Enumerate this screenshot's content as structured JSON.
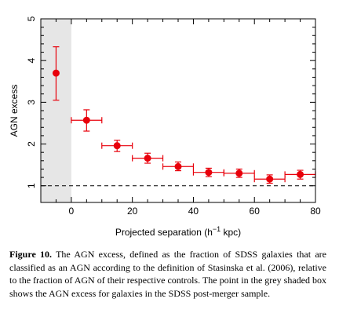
{
  "chart_data": {
    "type": "scatter",
    "xlabel": "Projected separation (h",
    "xlabel_sup": "−1",
    "xlabel_tail": " kpc)",
    "ylabel": "AGN excess",
    "xlim": [
      -10,
      80
    ],
    "ylim": [
      0.6,
      5.0
    ],
    "x_ticks": [
      0,
      20,
      40,
      60,
      80
    ],
    "x_tick_labels": [
      "0",
      "20",
      "40",
      "60",
      "80"
    ],
    "y_ticks": [
      1,
      2,
      3,
      4,
      5
    ],
    "y_tick_labels": [
      "1",
      "2",
      "3",
      "4",
      "5"
    ],
    "reference_line": 1,
    "shaded_region": [
      -10,
      0
    ],
    "marker_color": "#e8000b",
    "shade_color": "#e6e6e6",
    "points": [
      {
        "x": -5,
        "y": 3.7,
        "y_low": 3.05,
        "y_high": 4.33,
        "x_low": -5,
        "x_high": -5
      },
      {
        "x": 5,
        "y": 2.57,
        "y_low": 2.31,
        "y_high": 2.82,
        "x_low": 0,
        "x_high": 10
      },
      {
        "x": 15,
        "y": 1.96,
        "y_low": 1.82,
        "y_high": 2.09,
        "x_low": 10,
        "x_high": 20
      },
      {
        "x": 25,
        "y": 1.66,
        "y_low": 1.54,
        "y_high": 1.78,
        "x_low": 20,
        "x_high": 30
      },
      {
        "x": 35,
        "y": 1.46,
        "y_low": 1.36,
        "y_high": 1.57,
        "x_low": 30,
        "x_high": 40
      },
      {
        "x": 45,
        "y": 1.32,
        "y_low": 1.22,
        "y_high": 1.42,
        "x_low": 40,
        "x_high": 50
      },
      {
        "x": 55,
        "y": 1.3,
        "y_low": 1.2,
        "y_high": 1.4,
        "x_low": 50,
        "x_high": 60
      },
      {
        "x": 65,
        "y": 1.16,
        "y_low": 1.06,
        "y_high": 1.26,
        "x_low": 60,
        "x_high": 70
      },
      {
        "x": 75,
        "y": 1.27,
        "y_low": 1.16,
        "y_high": 1.37,
        "x_low": 70,
        "x_high": 80
      }
    ]
  },
  "caption": {
    "label": "Figure 10.",
    "text": " The AGN excess, defined as the fraction of SDSS galaxies that are classified as an AGN according to the definition of Stasinska et al. (2006), relative to the fraction of AGN of their respective controls. The point in the grey shaded box shows the AGN excess for galaxies in the SDSS post-merger sample."
  }
}
